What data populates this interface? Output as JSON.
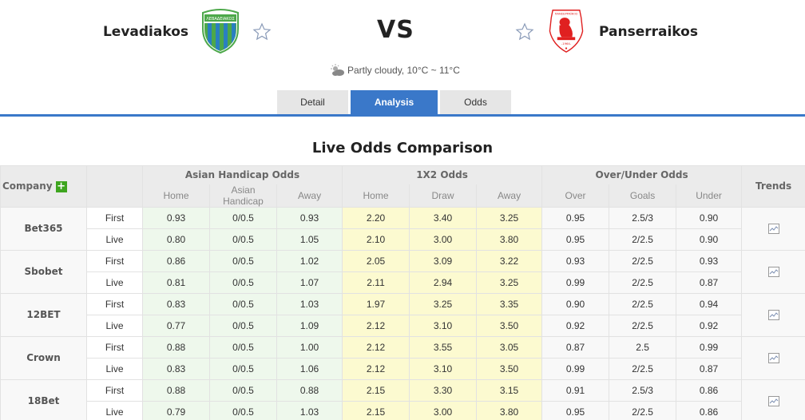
{
  "match": {
    "home_team": "Levadiakos",
    "away_team": "Panserraikos",
    "vs_label": "VS",
    "weather": "Partly cloudy, 10°C ~ 11°C",
    "weather_icon": "partly-cloudy-icon",
    "colors": {
      "home_logo": "#4da84a",
      "away_logo": "#e02020"
    }
  },
  "tabs": [
    {
      "label": "Detail",
      "active": false
    },
    {
      "label": "Analysis",
      "active": true
    },
    {
      "label": "Odds",
      "active": false
    }
  ],
  "section_title": "Live Odds Comparison",
  "table": {
    "headers": {
      "company": "Company",
      "asian_handicap": "Asian Handicap Odds",
      "x12": "1X2 Odds",
      "over_under": "Over/Under Odds",
      "trends": "Trends",
      "ah_sub": [
        "Home",
        "Asian Handicap",
        "Away"
      ],
      "x12_sub": [
        "Home",
        "Draw",
        "Away"
      ],
      "ou_sub": [
        "Over",
        "Goals",
        "Under"
      ]
    },
    "companies": [
      {
        "name": "Bet365",
        "rows": [
          {
            "type": "First",
            "ah": [
              "0.93",
              "0/0.5",
              "0.93"
            ],
            "x12": [
              "2.20",
              "3.40",
              "3.25"
            ],
            "ou": [
              "0.95",
              "2.5/3",
              "0.90"
            ]
          },
          {
            "type": "Live",
            "ah": [
              "0.80",
              "0/0.5",
              "1.05"
            ],
            "x12": [
              "2.10",
              "3.00",
              "3.80"
            ],
            "ou": [
              "0.95",
              "2/2.5",
              "0.90"
            ]
          }
        ]
      },
      {
        "name": "Sbobet",
        "rows": [
          {
            "type": "First",
            "ah": [
              "0.86",
              "0/0.5",
              "1.02"
            ],
            "x12": [
              "2.05",
              "3.09",
              "3.22"
            ],
            "ou": [
              "0.93",
              "2/2.5",
              "0.93"
            ]
          },
          {
            "type": "Live",
            "ah": [
              "0.81",
              "0/0.5",
              "1.07"
            ],
            "x12": [
              "2.11",
              "2.94",
              "3.25"
            ],
            "ou": [
              "0.99",
              "2/2.5",
              "0.87"
            ]
          }
        ]
      },
      {
        "name": "12BET",
        "rows": [
          {
            "type": "First",
            "ah": [
              "0.83",
              "0/0.5",
              "1.03"
            ],
            "x12": [
              "1.97",
              "3.25",
              "3.35"
            ],
            "ou": [
              "0.90",
              "2/2.5",
              "0.94"
            ]
          },
          {
            "type": "Live",
            "ah": [
              "0.77",
              "0/0.5",
              "1.09"
            ],
            "x12": [
              "2.12",
              "3.10",
              "3.50"
            ],
            "ou": [
              "0.92",
              "2/2.5",
              "0.92"
            ]
          }
        ]
      },
      {
        "name": "Crown",
        "rows": [
          {
            "type": "First",
            "ah": [
              "0.88",
              "0/0.5",
              "1.00"
            ],
            "x12": [
              "2.12",
              "3.55",
              "3.05"
            ],
            "ou": [
              "0.87",
              "2.5",
              "0.99"
            ]
          },
          {
            "type": "Live",
            "ah": [
              "0.83",
              "0/0.5",
              "1.06"
            ],
            "x12": [
              "2.12",
              "3.10",
              "3.50"
            ],
            "ou": [
              "0.99",
              "2/2.5",
              "0.87"
            ]
          }
        ]
      },
      {
        "name": "18Bet",
        "rows": [
          {
            "type": "First",
            "ah": [
              "0.88",
              "0/0.5",
              "0.88"
            ],
            "x12": [
              "2.15",
              "3.30",
              "3.15"
            ],
            "ou": [
              "0.91",
              "2.5/3",
              "0.86"
            ]
          },
          {
            "type": "Live",
            "ah": [
              "0.79",
              "0/0.5",
              "1.03"
            ],
            "x12": [
              "2.15",
              "3.00",
              "3.80"
            ],
            "ou": [
              "0.95",
              "2/2.5",
              "0.86"
            ]
          }
        ]
      }
    ]
  }
}
